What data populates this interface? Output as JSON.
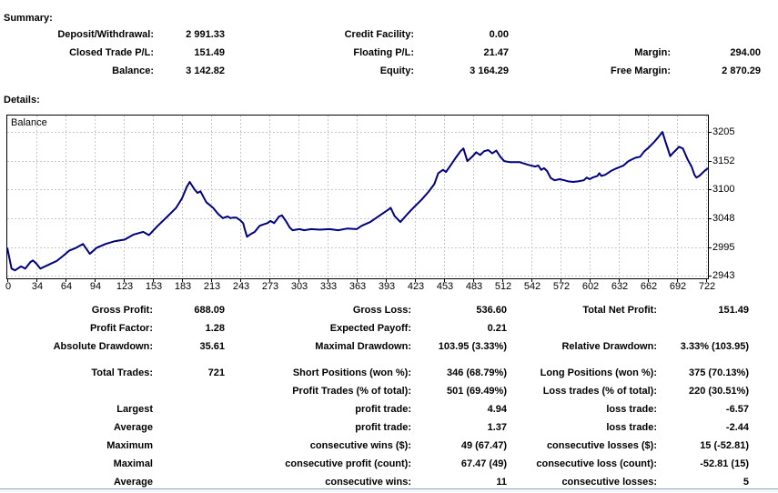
{
  "summary": {
    "heading": "Summary:",
    "rows": [
      [
        "Deposit/Withdrawal:",
        "2 991.33",
        "Credit Facility:",
        "0.00",
        "",
        ""
      ],
      [
        "Closed Trade P/L:",
        "151.49",
        "Floating P/L:",
        "21.47",
        "Margin:",
        "294.00"
      ],
      [
        "Balance:",
        "3 142.82",
        "Equity:",
        "3 164.29",
        "Free Margin:",
        "2 870.29"
      ]
    ]
  },
  "details_heading": "Details:",
  "stats_block1": {
    "rows": [
      [
        "Gross Profit:",
        "688.09",
        "Gross Loss:",
        "536.60",
        "Total Net Profit:",
        "151.49"
      ],
      [
        "Profit Factor:",
        "1.28",
        "Expected Payoff:",
        "0.21",
        "",
        ""
      ],
      [
        "Absolute Drawdown:",
        "35.61",
        "Maximal Drawdown:",
        "103.95 (3.33%)",
        "Relative Drawdown:",
        "3.33% (103.95)"
      ]
    ]
  },
  "stats_block2": {
    "rows": [
      [
        "Total Trades:",
        "721",
        "Short Positions (won %):",
        "346 (68.79%)",
        "Long Positions (won %):",
        "375 (70.13%)"
      ],
      [
        "",
        "",
        "Profit Trades (% of total):",
        "501 (69.49%)",
        "Loss trades (% of total):",
        "220 (30.51%)"
      ],
      [
        "Largest",
        "",
        "profit trade:",
        "4.94",
        "loss trade:",
        "-6.57"
      ],
      [
        "Average",
        "",
        "profit trade:",
        "1.37",
        "loss trade:",
        "-2.44"
      ],
      [
        "Maximum",
        "",
        "consecutive wins ($):",
        "49 (67.47)",
        "consecutive losses ($):",
        "15 (-52.81)"
      ],
      [
        "Maximal",
        "",
        "consecutive profit (count):",
        "67.47 (49)",
        "consecutive loss (count):",
        "-52.81 (15)"
      ],
      [
        "Average",
        "",
        "consecutive wins:",
        "11",
        "consecutive losses:",
        "5"
      ]
    ]
  },
  "chart_data": {
    "type": "line",
    "series_label": "Balance",
    "xlabel": "",
    "ylabel": "",
    "grid": true,
    "legend_position": "inside-top-left",
    "x_tick_values": [
      0,
      34,
      64,
      94,
      123,
      153,
      183,
      213,
      243,
      273,
      303,
      333,
      363,
      393,
      423,
      453,
      483,
      512,
      542,
      572,
      602,
      632,
      662,
      692,
      722
    ],
    "y_tick_values": [
      3205,
      3152,
      3100,
      3048,
      2995,
      2943
    ],
    "plot_value_range": [
      2940,
      3235
    ],
    "colors": {
      "line": "#000080",
      "grid": "#c8c8c8",
      "border": "#000000"
    },
    "points": [
      [
        0,
        2994
      ],
      [
        5,
        2956
      ],
      [
        9,
        2953
      ],
      [
        16,
        2960
      ],
      [
        21,
        2956
      ],
      [
        27,
        2968
      ],
      [
        30,
        2971
      ],
      [
        34,
        2965
      ],
      [
        38,
        2956
      ],
      [
        44,
        2961
      ],
      [
        50,
        2966
      ],
      [
        55,
        2970
      ],
      [
        62,
        2980
      ],
      [
        68,
        2989
      ],
      [
        75,
        2994
      ],
      [
        82,
        3001
      ],
      [
        89,
        2983
      ],
      [
        96,
        2994
      ],
      [
        105,
        3001
      ],
      [
        114,
        3006
      ],
      [
        124,
        3009
      ],
      [
        133,
        3018
      ],
      [
        143,
        3023
      ],
      [
        149,
        3017
      ],
      [
        158,
        3034
      ],
      [
        168,
        3051
      ],
      [
        177,
        3067
      ],
      [
        183,
        3084
      ],
      [
        188,
        3105
      ],
      [
        191,
        3114
      ],
      [
        196,
        3100
      ],
      [
        199,
        3094
      ],
      [
        202,
        3097
      ],
      [
        208,
        3077
      ],
      [
        215,
        3067
      ],
      [
        220,
        3056
      ],
      [
        225,
        3048
      ],
      [
        230,
        3051
      ],
      [
        233,
        3048
      ],
      [
        236,
        3049
      ],
      [
        239,
        3049
      ],
      [
        243,
        3044
      ],
      [
        246,
        3039
      ],
      [
        248,
        3026
      ],
      [
        250,
        3014
      ],
      [
        253,
        3018
      ],
      [
        258,
        3023
      ],
      [
        263,
        3034
      ],
      [
        266,
        3036
      ],
      [
        271,
        3039
      ],
      [
        274,
        3043
      ],
      [
        278,
        3039
      ],
      [
        283,
        3051
      ],
      [
        286,
        3053
      ],
      [
        290,
        3043
      ],
      [
        294,
        3031
      ],
      [
        297,
        3026
      ],
      [
        304,
        3028
      ],
      [
        309,
        3026
      ],
      [
        316,
        3028
      ],
      [
        325,
        3027
      ],
      [
        335,
        3028
      ],
      [
        344,
        3026
      ],
      [
        353,
        3029
      ],
      [
        363,
        3028
      ],
      [
        368,
        3034
      ],
      [
        377,
        3041
      ],
      [
        386,
        3052
      ],
      [
        396,
        3064
      ],
      [
        398,
        3067
      ],
      [
        402,
        3052
      ],
      [
        408,
        3041
      ],
      [
        415,
        3055
      ],
      [
        422,
        3068
      ],
      [
        430,
        3082
      ],
      [
        437,
        3096
      ],
      [
        443,
        3110
      ],
      [
        447,
        3130
      ],
      [
        452,
        3136
      ],
      [
        455,
        3132
      ],
      [
        460,
        3145
      ],
      [
        465,
        3158
      ],
      [
        470,
        3170
      ],
      [
        473,
        3175
      ],
      [
        477,
        3152
      ],
      [
        482,
        3160
      ],
      [
        486,
        3168
      ],
      [
        490,
        3163
      ],
      [
        494,
        3170
      ],
      [
        498,
        3172
      ],
      [
        502,
        3166
      ],
      [
        506,
        3171
      ],
      [
        510,
        3160
      ],
      [
        514,
        3152
      ],
      [
        520,
        3150
      ],
      [
        530,
        3150
      ],
      [
        539,
        3145
      ],
      [
        546,
        3142
      ],
      [
        549,
        3144
      ],
      [
        552,
        3136
      ],
      [
        555,
        3139
      ],
      [
        558,
        3134
      ],
      [
        562,
        3121
      ],
      [
        566,
        3117
      ],
      [
        571,
        3119
      ],
      [
        576,
        3117
      ],
      [
        580,
        3115
      ],
      [
        585,
        3114
      ],
      [
        590,
        3115
      ],
      [
        596,
        3117
      ],
      [
        599,
        3122
      ],
      [
        602,
        3119
      ],
      [
        605,
        3122
      ],
      [
        610,
        3125
      ],
      [
        612,
        3130
      ],
      [
        614,
        3125
      ],
      [
        618,
        3127
      ],
      [
        624,
        3134
      ],
      [
        630,
        3139
      ],
      [
        637,
        3144
      ],
      [
        642,
        3152
      ],
      [
        649,
        3158
      ],
      [
        654,
        3160
      ],
      [
        658,
        3169
      ],
      [
        663,
        3177
      ],
      [
        668,
        3186
      ],
      [
        672,
        3194
      ],
      [
        677,
        3205
      ],
      [
        680,
        3188
      ],
      [
        683,
        3172
      ],
      [
        685,
        3161
      ],
      [
        688,
        3167
      ],
      [
        691,
        3172
      ],
      [
        694,
        3178
      ],
      [
        698,
        3175
      ],
      [
        700,
        3167
      ],
      [
        703,
        3155
      ],
      [
        707,
        3142
      ],
      [
        710,
        3127
      ],
      [
        712,
        3122
      ],
      [
        715,
        3125
      ],
      [
        718,
        3130
      ],
      [
        721,
        3135
      ],
      [
        724,
        3139
      ]
    ]
  }
}
